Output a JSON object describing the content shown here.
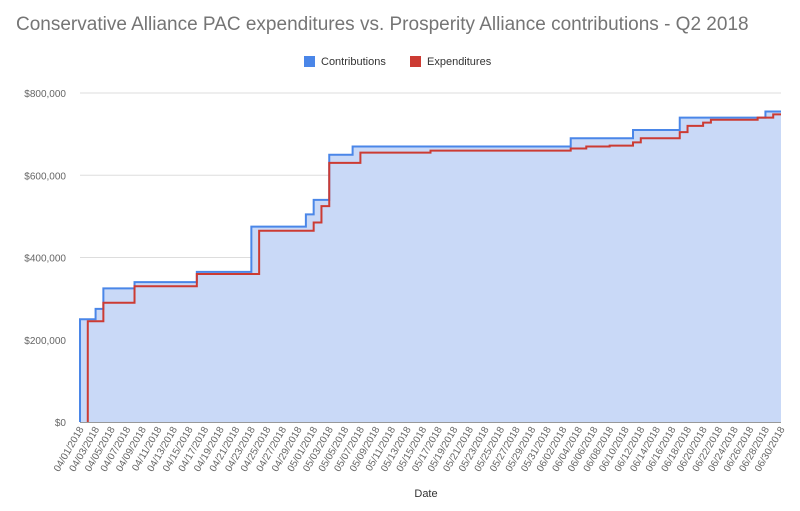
{
  "chart_data": {
    "type": "area",
    "title": "Conservative Alliance PAC expenditures vs. Prosperity Alliance contributions - Q2 2018",
    "xlabel": "Date",
    "ylabel": "",
    "ylim": [
      0,
      800000
    ],
    "yticks": [
      0,
      200000,
      400000,
      600000,
      800000
    ],
    "ytick_labels": [
      "$0",
      "$200,000",
      "$400,000",
      "$600,000",
      "$800,000"
    ],
    "xlim": [
      "04/01/2018",
      "06/30/2018"
    ],
    "xtick_labels": [
      "04/01/2018",
      "04/03/2018",
      "04/05/2018",
      "04/07/2018",
      "04/09/2018",
      "04/11/2018",
      "04/13/2018",
      "04/15/2018",
      "04/17/2018",
      "04/19/2018",
      "04/21/2018",
      "04/23/2018",
      "04/25/2018",
      "04/27/2018",
      "04/29/2018",
      "05/01/2018",
      "05/03/2018",
      "05/05/2018",
      "05/07/2018",
      "05/09/2018",
      "05/11/2018",
      "05/13/2018",
      "05/15/2018",
      "05/17/2018",
      "05/19/2018",
      "05/21/2018",
      "05/23/2018",
      "05/25/2018",
      "05/27/2018",
      "05/29/2018",
      "05/31/2018",
      "06/02/2018",
      "06/04/2018",
      "06/06/2018",
      "06/08/2018",
      "06/10/2018",
      "06/12/2018",
      "06/14/2018",
      "06/16/2018",
      "06/18/2018",
      "06/20/2018",
      "06/22/2018",
      "06/24/2018",
      "06/26/2018",
      "06/28/2018",
      "06/30/2018"
    ],
    "grid": true,
    "legend_position": "top",
    "series": [
      {
        "name": "Contributions",
        "color": "#4a86e8",
        "fill": "#c9d9f7",
        "step": true,
        "points": [
          [
            "04/01/2018",
            250000
          ],
          [
            "04/03/2018",
            275000
          ],
          [
            "04/04/2018",
            325000
          ],
          [
            "04/08/2018",
            340000
          ],
          [
            "04/16/2018",
            365000
          ],
          [
            "04/23/2018",
            475000
          ],
          [
            "04/30/2018",
            505000
          ],
          [
            "05/01/2018",
            540000
          ],
          [
            "05/03/2018",
            650000
          ],
          [
            "05/06/2018",
            670000
          ],
          [
            "06/03/2018",
            690000
          ],
          [
            "06/11/2018",
            710000
          ],
          [
            "06/17/2018",
            740000
          ],
          [
            "06/28/2018",
            755000
          ],
          [
            "06/30/2018",
            755000
          ]
        ]
      },
      {
        "name": "Expenditures",
        "color": "#cc3b33",
        "step": true,
        "points": [
          [
            "04/02/2018",
            0
          ],
          [
            "04/02/2018",
            245000
          ],
          [
            "04/04/2018",
            290000
          ],
          [
            "04/08/2018",
            330000
          ],
          [
            "04/16/2018",
            360000
          ],
          [
            "04/24/2018",
            465000
          ],
          [
            "05/01/2018",
            485000
          ],
          [
            "05/02/2018",
            525000
          ],
          [
            "05/03/2018",
            630000
          ],
          [
            "05/07/2018",
            655000
          ],
          [
            "05/16/2018",
            660000
          ],
          [
            "06/03/2018",
            665000
          ],
          [
            "06/05/2018",
            670000
          ],
          [
            "06/08/2018",
            672000
          ],
          [
            "06/11/2018",
            680000
          ],
          [
            "06/12/2018",
            690000
          ],
          [
            "06/17/2018",
            705000
          ],
          [
            "06/18/2018",
            720000
          ],
          [
            "06/20/2018",
            728000
          ],
          [
            "06/21/2018",
            735000
          ],
          [
            "06/27/2018",
            740000
          ],
          [
            "06/29/2018",
            748000
          ],
          [
            "06/30/2018",
            748000
          ]
        ]
      }
    ]
  }
}
